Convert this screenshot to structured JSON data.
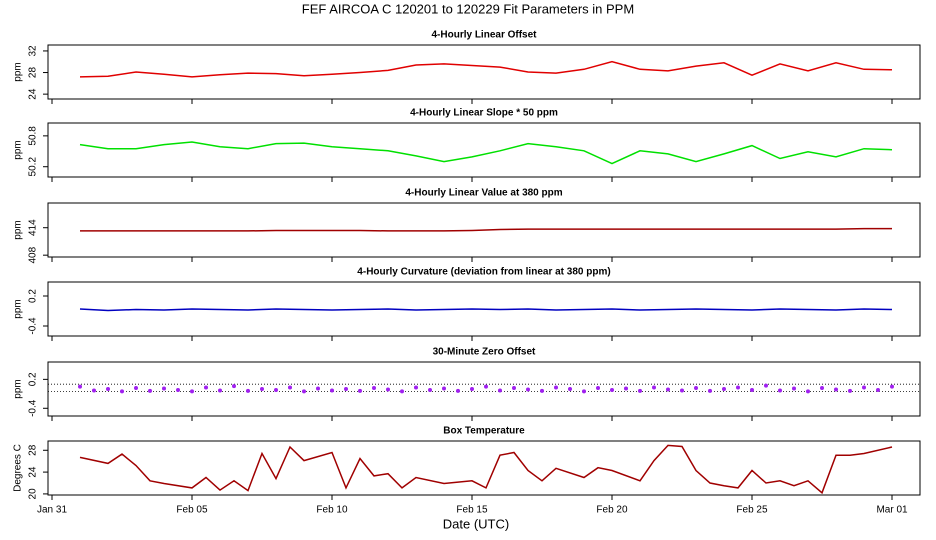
{
  "title": "FEF   AIRCOA C   120201 to 120229   Fit Parameters in PPM",
  "xlabel": "Date (UTC)",
  "xticks": [
    "Jan 31",
    "Feb 05",
    "Feb 10",
    "Feb 15",
    "Feb 20",
    "Feb 25",
    "Mar 01"
  ],
  "chart_data": [
    {
      "type": "line",
      "title": "4-Hourly Linear Offset",
      "ylabel": "ppm",
      "color": "#e00000",
      "ylim": [
        23.1,
        33.1
      ],
      "yticks": [
        24,
        28,
        32
      ],
      "x": [
        "Feb 01",
        "Feb 02",
        "Feb 03",
        "Feb 04",
        "Feb 05",
        "Feb 06",
        "Feb 07",
        "Feb 08",
        "Feb 09",
        "Feb 10",
        "Feb 11",
        "Feb 12",
        "Feb 13",
        "Feb 14",
        "Feb 15",
        "Feb 16",
        "Feb 17",
        "Feb 18",
        "Feb 19",
        "Feb 20",
        "Feb 21",
        "Feb 22",
        "Feb 23",
        "Feb 24",
        "Feb 25",
        "Feb 26",
        "Feb 27",
        "Feb 28",
        "Feb 29",
        "Mar 01"
      ],
      "values": [
        27.2,
        27.3,
        28.1,
        27.7,
        27.2,
        27.6,
        27.9,
        27.8,
        27.4,
        27.7,
        28.0,
        28.4,
        29.4,
        29.6,
        29.3,
        29.0,
        28.1,
        27.9,
        28.6,
        30.0,
        28.6,
        28.3,
        29.2,
        29.8,
        27.5,
        29.6,
        28.3,
        29.8,
        28.6,
        28.5
      ]
    },
    {
      "type": "line",
      "title": "4-Hourly Linear Slope * 50 ppm",
      "ylabel": "ppm",
      "color": "#00e000",
      "ylim": [
        50.0,
        51.05
      ],
      "yticks": [
        50.2,
        50.8
      ],
      "x": [
        "Feb 01",
        "Feb 02",
        "Feb 03",
        "Feb 04",
        "Feb 05",
        "Feb 06",
        "Feb 07",
        "Feb 08",
        "Feb 09",
        "Feb 10",
        "Feb 11",
        "Feb 12",
        "Feb 13",
        "Feb 14",
        "Feb 15",
        "Feb 16",
        "Feb 17",
        "Feb 18",
        "Feb 19",
        "Feb 20",
        "Feb 21",
        "Feb 22",
        "Feb 23",
        "Feb 24",
        "Feb 25",
        "Feb 26",
        "Feb 27",
        "Feb 28",
        "Feb 29",
        "Mar 01"
      ],
      "values": [
        50.63,
        50.55,
        50.55,
        50.63,
        50.68,
        50.59,
        50.55,
        50.65,
        50.66,
        50.59,
        50.55,
        50.51,
        50.41,
        50.3,
        50.39,
        50.51,
        50.65,
        50.59,
        50.51,
        50.26,
        50.51,
        50.45,
        50.3,
        50.45,
        50.61,
        50.36,
        50.49,
        50.39,
        50.55,
        50.53
      ]
    },
    {
      "type": "line",
      "title": "4-Hourly Linear Value at 380 ppm",
      "ylabel": "ppm",
      "color": "#a00000",
      "ylim": [
        407.6,
        419.4
      ],
      "yticks": [
        408,
        414
      ],
      "x": [
        "Feb 01",
        "Feb 02",
        "Feb 03",
        "Feb 04",
        "Feb 05",
        "Feb 06",
        "Feb 07",
        "Feb 08",
        "Feb 09",
        "Feb 10",
        "Feb 11",
        "Feb 12",
        "Feb 13",
        "Feb 14",
        "Feb 15",
        "Feb 16",
        "Feb 17",
        "Feb 18",
        "Feb 19",
        "Feb 20",
        "Feb 21",
        "Feb 22",
        "Feb 23",
        "Feb 24",
        "Feb 25",
        "Feb 26",
        "Feb 27",
        "Feb 28",
        "Feb 29",
        "Mar 01"
      ],
      "values": [
        413.3,
        413.3,
        413.3,
        413.3,
        413.3,
        413.3,
        413.3,
        413.4,
        413.4,
        413.4,
        413.4,
        413.3,
        413.3,
        413.3,
        413.4,
        413.6,
        413.7,
        413.7,
        413.7,
        413.7,
        413.7,
        413.7,
        413.7,
        413.7,
        413.7,
        413.7,
        413.7,
        413.7,
        413.8,
        413.8
      ]
    },
    {
      "type": "line",
      "title": "4-Hourly Curvature (deviation from linear at 380 ppm)",
      "ylabel": "ppm",
      "color": "#0000c0",
      "ylim": [
        -0.6,
        0.48
      ],
      "yticks": [
        0.2,
        -0.4
      ],
      "x": [
        "Feb 01",
        "Feb 02",
        "Feb 03",
        "Feb 04",
        "Feb 05",
        "Feb 06",
        "Feb 07",
        "Feb 08",
        "Feb 09",
        "Feb 10",
        "Feb 11",
        "Feb 12",
        "Feb 13",
        "Feb 14",
        "Feb 15",
        "Feb 16",
        "Feb 17",
        "Feb 18",
        "Feb 19",
        "Feb 20",
        "Feb 21",
        "Feb 22",
        "Feb 23",
        "Feb 24",
        "Feb 25",
        "Feb 26",
        "Feb 27",
        "Feb 28",
        "Feb 29",
        "Mar 01"
      ],
      "values": [
        -0.06,
        -0.09,
        -0.07,
        -0.08,
        -0.06,
        -0.07,
        -0.08,
        -0.06,
        -0.07,
        -0.08,
        -0.07,
        -0.06,
        -0.08,
        -0.07,
        -0.06,
        -0.07,
        -0.06,
        -0.08,
        -0.07,
        -0.06,
        -0.08,
        -0.07,
        -0.06,
        -0.07,
        -0.08,
        -0.06,
        -0.07,
        -0.08,
        -0.06,
        -0.07
      ]
    },
    {
      "type": "scatter",
      "title": "30-Minute Zero Offset",
      "ylabel": "ppm",
      "color": "#a020f0",
      "ylim": [
        -0.56,
        0.56
      ],
      "yticks": [
        0.2,
        -0.4
      ],
      "reference_lines": [
        0.1,
        -0.05
      ],
      "x": [
        "Feb 01",
        "Feb 01 12:00",
        "Feb 02",
        "Feb 02 12:00",
        "Feb 03",
        "Feb 03 12:00",
        "Feb 04",
        "Feb 04 12:00",
        "Feb 05",
        "Feb 05 12:00",
        "Feb 06",
        "Feb 06 12:00",
        "Feb 07",
        "Feb 07 12:00",
        "Feb 08",
        "Feb 08 12:00",
        "Feb 09",
        "Feb 09 12:00",
        "Feb 10",
        "Feb 10 12:00",
        "Feb 11",
        "Feb 11 12:00",
        "Feb 12",
        "Feb 12 12:00",
        "Feb 13",
        "Feb 13 12:00",
        "Feb 14",
        "Feb 14 12:00",
        "Feb 15",
        "Feb 15 12:00",
        "Feb 16",
        "Feb 16 12:00",
        "Feb 17",
        "Feb 17 12:00",
        "Feb 18",
        "Feb 18 12:00",
        "Feb 19",
        "Feb 19 12:00",
        "Feb 20",
        "Feb 20 12:00",
        "Feb 21",
        "Feb 21 12:00",
        "Feb 22",
        "Feb 22 12:00",
        "Feb 23",
        "Feb 23 12:00",
        "Feb 24",
        "Feb 24 12:00",
        "Feb 25",
        "Feb 25 12:00",
        "Feb 26",
        "Feb 26 12:00",
        "Feb 27",
        "Feb 27 12:00",
        "Feb 28",
        "Feb 28 12:00",
        "Feb 29",
        "Feb 29 12:00",
        "Mar 01"
      ],
      "values": [
        0.05,
        -0.03,
        0.0,
        -0.05,
        0.02,
        -0.04,
        0.01,
        -0.02,
        -0.05,
        0.03,
        -0.03,
        0.06,
        -0.04,
        0.0,
        -0.02,
        0.03,
        -0.05,
        0.01,
        -0.03,
        0.0,
        -0.04,
        0.02,
        -0.01,
        -0.05,
        0.03,
        -0.02,
        0.01,
        -0.04,
        0.0,
        0.05,
        -0.03,
        0.02,
        -0.01,
        -0.04,
        0.03,
        0.0,
        -0.05,
        0.02,
        -0.02,
        0.01,
        -0.04,
        0.03,
        -0.01,
        -0.03,
        0.02,
        -0.04,
        0.0,
        0.03,
        -0.02,
        0.07,
        -0.03,
        0.01,
        -0.05,
        0.02,
        -0.01,
        -0.04,
        0.03,
        -0.02,
        0.05
      ]
    },
    {
      "type": "line",
      "title": "Box Temperature",
      "ylabel": "Degrees C",
      "color": "#a00000",
      "ylim": [
        19.8,
        29.7
      ],
      "yticks": [
        20,
        24,
        28
      ],
      "x": [
        "Feb 01",
        "Feb 02",
        "Feb 02 12:00",
        "Feb 03",
        "Feb 03 12:00",
        "Feb 04",
        "Feb 05",
        "Feb 05 12:00",
        "Feb 06",
        "Feb 06 12:00",
        "Feb 07",
        "Feb 07 12:00",
        "Feb 08",
        "Feb 08 12:00",
        "Feb 09",
        "Feb 10",
        "Feb 10 12:00",
        "Feb 11",
        "Feb 11 12:00",
        "Feb 12",
        "Feb 12 12:00",
        "Feb 13",
        "Feb 14",
        "Feb 15",
        "Feb 15 12:00",
        "Feb 16",
        "Feb 16 12:00",
        "Feb 17",
        "Feb 17 12:00",
        "Feb 18",
        "Feb 19",
        "Feb 19 12:00",
        "Feb 20",
        "Feb 21",
        "Feb 21 12:00",
        "Feb 22",
        "Feb 22 12:00",
        "Feb 23",
        "Feb 23 12:00",
        "Feb 24",
        "Feb 24 12:00",
        "Feb 25",
        "Feb 25 12:00",
        "Feb 26",
        "Feb 26 12:00",
        "Feb 27",
        "Feb 27 12:00",
        "Feb 28",
        "Feb 28 12:00",
        "Feb 29",
        "Mar 01"
      ],
      "values": [
        26.7,
        25.6,
        27.3,
        25.2,
        22.4,
        21.9,
        21.1,
        23.0,
        20.7,
        22.4,
        20.6,
        27.4,
        22.8,
        28.6,
        26.1,
        27.6,
        21.1,
        26.5,
        23.3,
        23.7,
        21.1,
        23.0,
        21.9,
        22.4,
        21.1,
        27.1,
        27.6,
        24.3,
        22.4,
        24.7,
        23.0,
        24.8,
        24.3,
        22.4,
        26.1,
        28.9,
        28.7,
        24.3,
        22.0,
        21.5,
        21.1,
        24.3,
        22.0,
        22.4,
        21.5,
        22.4,
        20.2,
        27.1,
        27.1,
        27.4,
        28.6
      ]
    }
  ]
}
